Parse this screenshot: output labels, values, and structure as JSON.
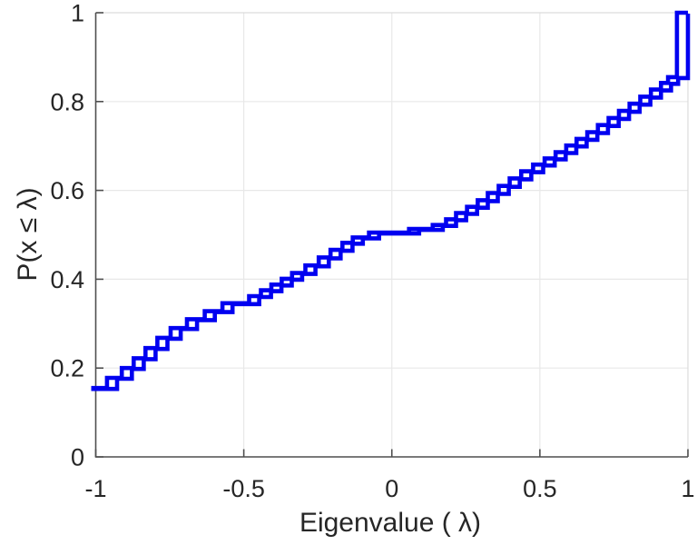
{
  "figure": {
    "background": "#ffffff",
    "kind": "matlab-style eigenvalue CDF plot"
  },
  "chart_data": {
    "type": "line",
    "subtype": "ecdf-stairs",
    "title": "",
    "xlabel": "Eigenvalue (  λ)",
    "ylabel": "P(x ≤ λ)",
    "xlim": [
      -1,
      1
    ],
    "ylim": [
      0,
      1
    ],
    "grid": true,
    "legend": "none",
    "xticks": [
      {
        "v": -1,
        "label": "-1"
      },
      {
        "v": -0.5,
        "label": "-0.5"
      },
      {
        "v": 0,
        "label": "0"
      },
      {
        "v": 0.5,
        "label": "0.5"
      },
      {
        "v": 1,
        "label": "1"
      }
    ],
    "yticks": [
      {
        "v": 0,
        "label": "0"
      },
      {
        "v": 0.2,
        "label": "0.2"
      },
      {
        "v": 0.4,
        "label": "0.4"
      },
      {
        "v": 0.6,
        "label": "0.6"
      },
      {
        "v": 0.8,
        "label": "0.8"
      },
      {
        "v": 1,
        "label": "1"
      }
    ],
    "colors": {
      "line": "#0000f0",
      "grid": "#e8e8e8",
      "axis": "#4f4f4f",
      "box_light": "#dcdcdc",
      "text": "#262626"
    },
    "series": [
      {
        "name": "ecdf-1",
        "start": [
          -1,
          0.155
        ],
        "steps": [
          [
            -0.962,
            0.178
          ],
          [
            -0.912,
            0.2
          ],
          [
            -0.872,
            0.222
          ],
          [
            -0.832,
            0.245
          ],
          [
            -0.792,
            0.268
          ],
          [
            -0.747,
            0.29
          ],
          [
            -0.692,
            0.31
          ],
          [
            -0.632,
            0.328
          ],
          [
            -0.572,
            0.346
          ],
          [
            -0.482,
            0.362
          ],
          [
            -0.442,
            0.375
          ],
          [
            -0.407,
            0.388
          ],
          [
            -0.372,
            0.401
          ],
          [
            -0.337,
            0.414
          ],
          [
            -0.292,
            0.431
          ],
          [
            -0.247,
            0.449
          ],
          [
            -0.207,
            0.466
          ],
          [
            -0.167,
            0.482
          ],
          [
            -0.132,
            0.494
          ],
          [
            -0.077,
            0.505
          ],
          [
            0.058,
            0.513
          ],
          [
            0.138,
            0.522
          ],
          [
            0.183,
            0.535
          ],
          [
            0.217,
            0.549
          ],
          [
            0.254,
            0.563
          ],
          [
            0.29,
            0.578
          ],
          [
            0.324,
            0.594
          ],
          [
            0.361,
            0.61
          ],
          [
            0.398,
            0.627
          ],
          [
            0.437,
            0.643
          ],
          [
            0.477,
            0.658
          ],
          [
            0.516,
            0.672
          ],
          [
            0.553,
            0.686
          ],
          [
            0.589,
            0.701
          ],
          [
            0.624,
            0.716
          ],
          [
            0.66,
            0.731
          ],
          [
            0.696,
            0.747
          ],
          [
            0.732,
            0.763
          ],
          [
            0.767,
            0.779
          ],
          [
            0.803,
            0.795
          ],
          [
            0.839,
            0.811
          ],
          [
            0.875,
            0.827
          ],
          [
            0.909,
            0.842
          ],
          [
            0.933,
            0.855
          ],
          [
            0.963,
            1.0
          ]
        ],
        "end": [
          1,
          1
        ]
      },
      {
        "name": "ecdf-2",
        "start": [
          -1,
          0.155
        ],
        "steps": [
          [
            -0.928,
            0.178
          ],
          [
            -0.878,
            0.2
          ],
          [
            -0.838,
            0.222
          ],
          [
            -0.798,
            0.245
          ],
          [
            -0.758,
            0.268
          ],
          [
            -0.713,
            0.29
          ],
          [
            -0.658,
            0.31
          ],
          [
            -0.598,
            0.328
          ],
          [
            -0.538,
            0.346
          ],
          [
            -0.448,
            0.362
          ],
          [
            -0.408,
            0.375
          ],
          [
            -0.373,
            0.388
          ],
          [
            -0.338,
            0.401
          ],
          [
            -0.303,
            0.414
          ],
          [
            -0.258,
            0.431
          ],
          [
            -0.213,
            0.449
          ],
          [
            -0.173,
            0.466
          ],
          [
            -0.133,
            0.482
          ],
          [
            -0.098,
            0.494
          ],
          [
            -0.043,
            0.505
          ],
          [
            0.092,
            0.513
          ],
          [
            0.172,
            0.522
          ],
          [
            0.217,
            0.535
          ],
          [
            0.251,
            0.549
          ],
          [
            0.288,
            0.563
          ],
          [
            0.324,
            0.578
          ],
          [
            0.358,
            0.594
          ],
          [
            0.395,
            0.61
          ],
          [
            0.432,
            0.627
          ],
          [
            0.471,
            0.643
          ],
          [
            0.511,
            0.658
          ],
          [
            0.55,
            0.672
          ],
          [
            0.587,
            0.686
          ],
          [
            0.623,
            0.701
          ],
          [
            0.658,
            0.716
          ],
          [
            0.694,
            0.731
          ],
          [
            0.73,
            0.747
          ],
          [
            0.766,
            0.763
          ],
          [
            0.801,
            0.779
          ],
          [
            0.837,
            0.795
          ],
          [
            0.873,
            0.811
          ],
          [
            0.909,
            0.827
          ],
          [
            0.943,
            0.842
          ],
          [
            0.967,
            0.855
          ],
          [
            1.0,
            1.0
          ]
        ],
        "end": [
          1,
          1
        ]
      }
    ]
  }
}
